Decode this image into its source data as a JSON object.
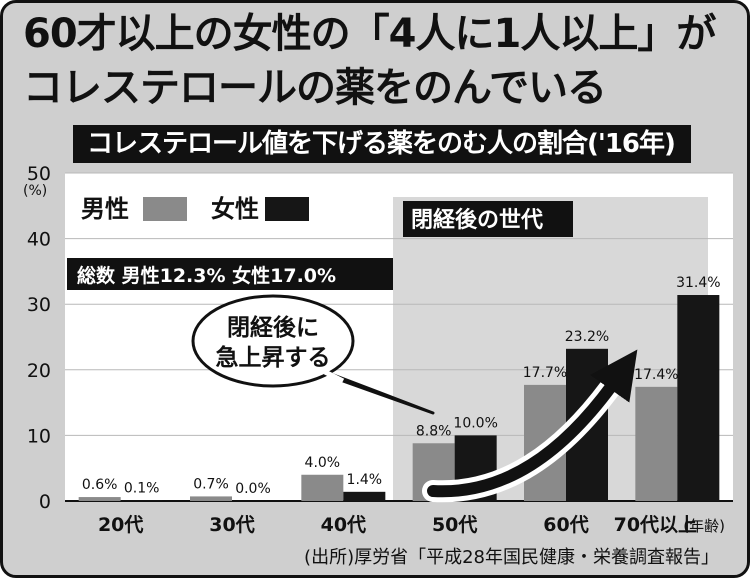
{
  "header": {
    "headline_line1": "60才以上の女性の「4人に1人以上」が",
    "headline_line2": "コレステロールの薬をのんでいる",
    "subtitle": "コレステロール値を下げる薬をのむ人の割合('16年)"
  },
  "source": "(出所)厚労省「平成28年国民健康・栄養調査報告」",
  "colors": {
    "male": "#8a8a8a",
    "female": "#161616",
    "highlight": "#d8d8d8",
    "background": "#cfcfcf"
  },
  "chart_data": {
    "type": "bar",
    "categories": [
      "20代",
      "30代",
      "40代",
      "50代",
      "60代",
      "70代以上"
    ],
    "series": [
      {
        "name": "男性",
        "values": [
          0.6,
          0.7,
          4.0,
          8.8,
          17.7,
          17.4
        ],
        "labels": [
          "0.6%",
          "0.7%",
          "4.0%",
          "8.8%",
          "17.7%",
          "17.4%"
        ]
      },
      {
        "name": "女性",
        "values": [
          0.1,
          0.0,
          1.4,
          10.0,
          23.2,
          31.4
        ],
        "labels": [
          "0.1%",
          "0.0%",
          "1.4%",
          "10.0%",
          "23.2%",
          "31.4%"
        ]
      }
    ],
    "ylim": [
      0,
      50
    ],
    "yticks": [
      "0",
      "10",
      "20",
      "30",
      "40",
      "50"
    ],
    "yunit": "(%)",
    "xunit": "(年齢)",
    "legend_position": "top-left",
    "summary": "総数 男性12.3% 女性17.0%",
    "highlight_region": {
      "label": "閉経後の世代",
      "from": "50代",
      "to": "70代以上"
    },
    "callout": {
      "line1": "閉経後に",
      "line2": "急上昇する"
    }
  }
}
